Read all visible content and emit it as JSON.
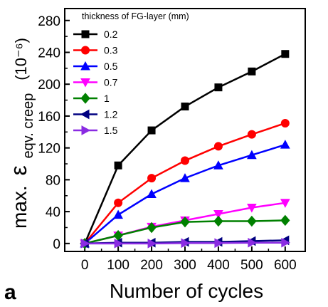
{
  "panel_label": "a",
  "chart_data": {
    "type": "line",
    "xlabel": "Number of cycles",
    "ylabel_prefix": "max.",
    "ylabel_symbol": "ε",
    "ylabel_subscript": "eqv. creep",
    "ylabel_unit": "(10⁻⁶)",
    "legend_title": "thickness of FG-layer (mm)",
    "legend_position": "top-left",
    "grid": false,
    "x": [
      0,
      100,
      200,
      300,
      400,
      500,
      600
    ],
    "x_ticks": [
      "0",
      "100",
      "200",
      "300",
      "400",
      "500",
      "600"
    ],
    "xlim": [
      -60,
      660
    ],
    "y_ticks": [
      "0",
      "40",
      "80",
      "120",
      "160",
      "200",
      "240",
      "280"
    ],
    "ylim": [
      -10,
      295
    ],
    "series": [
      {
        "name": "0.2",
        "color": "#000000",
        "marker": "square",
        "values": [
          0,
          98,
          142,
          172,
          196,
          216,
          238
        ]
      },
      {
        "name": "0.3",
        "color": "#ff0000",
        "marker": "circle",
        "values": [
          0,
          51,
          82,
          104,
          122,
          137,
          151
        ]
      },
      {
        "name": "0.5",
        "color": "#0000ff",
        "marker": "triangle-up",
        "values": [
          0,
          36,
          62,
          82,
          98,
          111,
          124
        ]
      },
      {
        "name": "0.7",
        "color": "#ff00ff",
        "marker": "triangle-down",
        "values": [
          0,
          10,
          21,
          29,
          37,
          45,
          51
        ]
      },
      {
        "name": "1",
        "color": "#008000",
        "marker": "diamond",
        "values": [
          0,
          10,
          20,
          27,
          28,
          28,
          29
        ]
      },
      {
        "name": "1.2",
        "color": "#000080",
        "marker": "triangle-left",
        "values": [
          0,
          1,
          1,
          2,
          2,
          3,
          4
        ]
      },
      {
        "name": "1.5",
        "color": "#8a2be2",
        "marker": "triangle-right",
        "values": [
          0,
          0,
          0,
          0.5,
          0.5,
          1,
          1
        ]
      }
    ]
  }
}
